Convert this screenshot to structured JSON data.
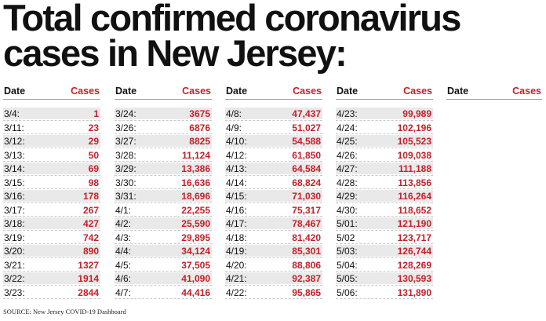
{
  "title": {
    "line1": "Total confirmed coronavirus",
    "line2": "cases in New Jersey:"
  },
  "source": "SOURCE: New Jersey COVID-19 Dashboard",
  "colors": {
    "cases": "#c4202a",
    "shade": "#e9e9e9",
    "text": "#111111"
  },
  "chart_data": {
    "type": "table",
    "title": "Total confirmed coronavirus cases in New Jersey:",
    "columns": [
      "Date",
      "Cases"
    ],
    "groups": [
      {
        "header_date": "Date",
        "header_cases": "Cases",
        "rows": [
          {
            "date": "3/4:",
            "cases": "1"
          },
          {
            "date": "3/11:",
            "cases": "23"
          },
          {
            "date": "3/12:",
            "cases": "29"
          },
          {
            "date": "3/13:",
            "cases": "50"
          },
          {
            "date": "3/14:",
            "cases": "69"
          },
          {
            "date": "3/15:",
            "cases": "98"
          },
          {
            "date": "3/16:",
            "cases": "178"
          },
          {
            "date": "3/17:",
            "cases": "267"
          },
          {
            "date": "3/18:",
            "cases": "427"
          },
          {
            "date": "3/19:",
            "cases": "742"
          },
          {
            "date": "3/20:",
            "cases": "890"
          },
          {
            "date": "3/21:",
            "cases": "1327"
          },
          {
            "date": "3/22:",
            "cases": "1914"
          },
          {
            "date": "3/23:",
            "cases": "2844"
          }
        ]
      },
      {
        "header_date": "Date",
        "header_cases": "Cases",
        "rows": [
          {
            "date": "3/24:",
            "cases": "3675"
          },
          {
            "date": "3/26:",
            "cases": "6876"
          },
          {
            "date": "3/27:",
            "cases": "8825"
          },
          {
            "date": "3/28:",
            "cases": "11,124"
          },
          {
            "date": "3/29:",
            "cases": "13,386"
          },
          {
            "date": "3/30:",
            "cases": "16,636"
          },
          {
            "date": "3/31:",
            "cases": "18,696"
          },
          {
            "date": "4/1:",
            "cases": "22,255"
          },
          {
            "date": "4/2:",
            "cases": "25,590"
          },
          {
            "date": "4/3:",
            "cases": "29,895"
          },
          {
            "date": "4/4:",
            "cases": "34,124"
          },
          {
            "date": "4/5:",
            "cases": "37,505"
          },
          {
            "date": "4/6:",
            "cases": "41,090"
          },
          {
            "date": "4/7:",
            "cases": "44,416"
          }
        ]
      },
      {
        "header_date": "Date",
        "header_cases": "Cases",
        "rows": [
          {
            "date": "4/8:",
            "cases": "47,437"
          },
          {
            "date": "4/9:",
            "cases": "51,027"
          },
          {
            "date": "4/10:",
            "cases": "54,588"
          },
          {
            "date": "4/12:",
            "cases": "61,850"
          },
          {
            "date": "4/13:",
            "cases": "64,584"
          },
          {
            "date": "4/14:",
            "cases": "68,824"
          },
          {
            "date": "4/15:",
            "cases": "71,030"
          },
          {
            "date": "4/16:",
            "cases": "75,317"
          },
          {
            "date": "4/17:",
            "cases": "78,467"
          },
          {
            "date": "4/18:",
            "cases": "81,420"
          },
          {
            "date": "4/19:",
            "cases": "85,301"
          },
          {
            "date": "4/20:",
            "cases": "88,806"
          },
          {
            "date": "4/21:",
            "cases": "92,387"
          },
          {
            "date": "4/22:",
            "cases": "95,865"
          }
        ]
      },
      {
        "header_date": "Date",
        "header_cases": "Cases",
        "rows": [
          {
            "date": "4/23:",
            "cases": "99,989"
          },
          {
            "date": "4/24:",
            "cases": "102,196"
          },
          {
            "date": "4/25:",
            "cases": "105,523"
          },
          {
            "date": "4/26:",
            "cases": "109,038"
          },
          {
            "date": "4/27:",
            "cases": "111,188"
          },
          {
            "date": "4/28:",
            "cases": "113,856"
          },
          {
            "date": "4/29:",
            "cases": "116,264"
          },
          {
            "date": "4/30:",
            "cases": "118,652"
          },
          {
            "date": "5/01:",
            "cases": "121,190"
          },
          {
            "date": "5/02",
            "cases": "123,717"
          },
          {
            "date": "5/03:",
            "cases": "126,744"
          },
          {
            "date": "5/04:",
            "cases": "128,269"
          },
          {
            "date": "5/05:",
            "cases": "130,593"
          },
          {
            "date": "5/06:",
            "cases": "131,890"
          }
        ]
      },
      {
        "header_date": "Date",
        "header_cases": "Cases",
        "rows": []
      }
    ]
  }
}
